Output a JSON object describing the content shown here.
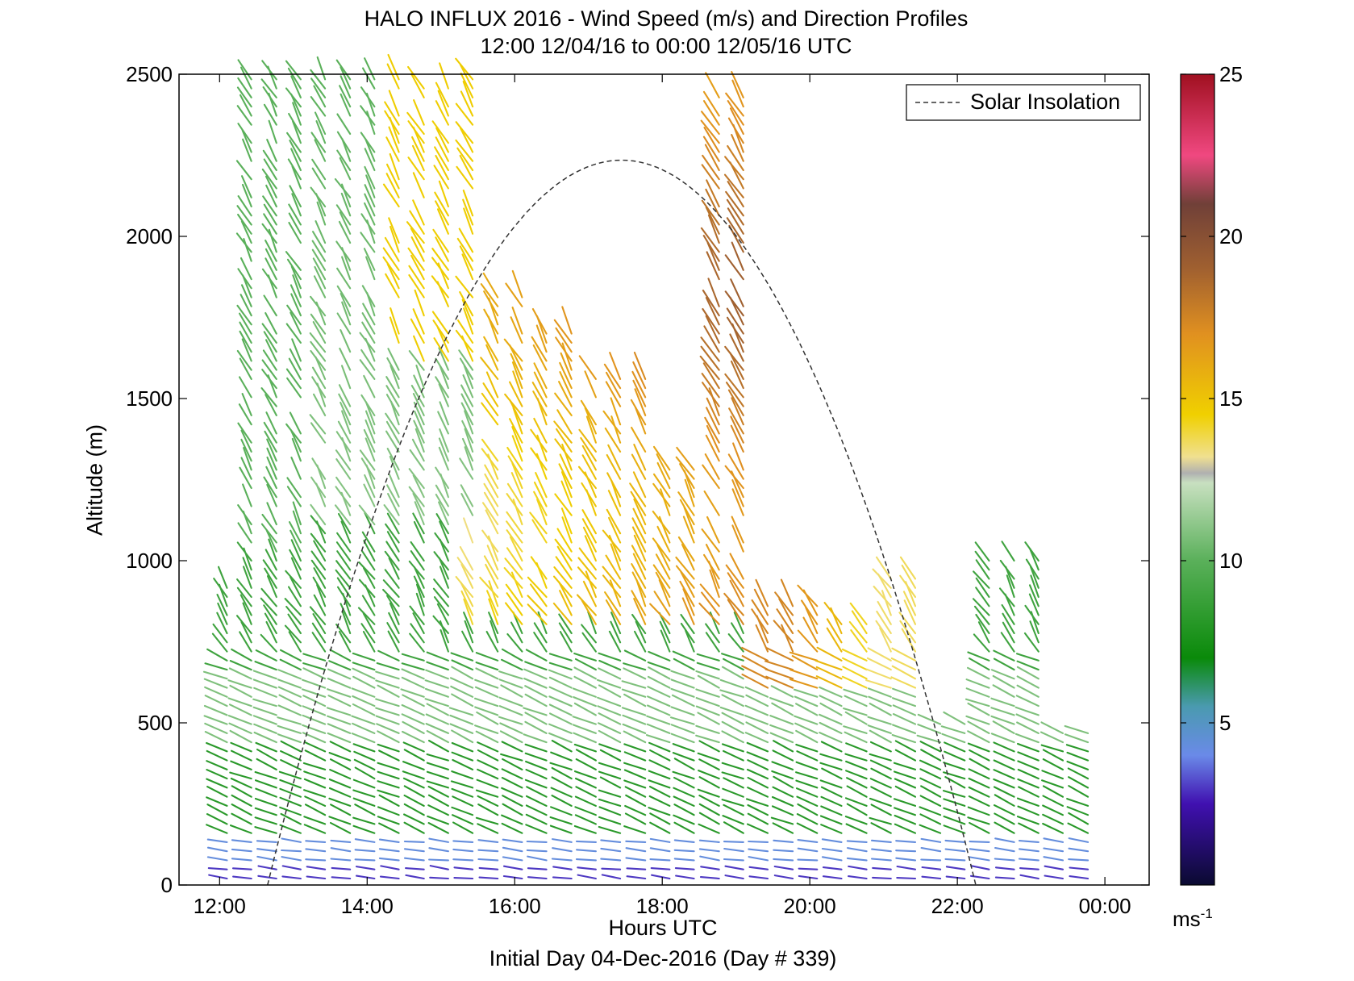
{
  "chart_data": {
    "type": "scatter",
    "title": "HALO INFLUX 2016 - Wind Speed (m/s) and Direction Profiles",
    "subtitle": "12:00 12/04/16 to 00:00 12/05/16  UTC",
    "xlabel": "Hours UTC",
    "xlabel_sub": "Initial Day 04-Dec-2016 (Day # 339)",
    "ylabel": "Altitude (m)",
    "xlim": [
      11.45,
      24.6
    ],
    "ylim": [
      0,
      2500
    ],
    "x_ticks": [
      {
        "value": 12,
        "label": "12:00"
      },
      {
        "value": 14,
        "label": "14:00"
      },
      {
        "value": 16,
        "label": "16:00"
      },
      {
        "value": 18,
        "label": "18:00"
      },
      {
        "value": 20,
        "label": "20:00"
      },
      {
        "value": 22,
        "label": "22:00"
      },
      {
        "value": 24,
        "label": "00:00"
      }
    ],
    "y_ticks": [
      {
        "value": 0,
        "label": "0"
      },
      {
        "value": 500,
        "label": "500"
      },
      {
        "value": 1000,
        "label": "1000"
      },
      {
        "value": 1500,
        "label": "1500"
      },
      {
        "value": 2000,
        "label": "2000"
      },
      {
        "value": 2500,
        "label": "2500"
      }
    ],
    "legend": {
      "label": "Solar Insolation",
      "placement": "top-right"
    },
    "colorbar": {
      "range": [
        0,
        25
      ],
      "ticks": [
        {
          "value": 5,
          "label": "5"
        },
        {
          "value": 10,
          "label": "10"
        },
        {
          "value": 15,
          "label": "15"
        },
        {
          "value": 20,
          "label": "20"
        },
        {
          "value": 25,
          "label": "25"
        }
      ],
      "unit_base": "ms",
      "unit_exp": "-1",
      "stops": [
        {
          "value": 0,
          "color": "#0a0a30"
        },
        {
          "value": 2.5,
          "color": "#4010b0"
        },
        {
          "value": 4,
          "color": "#6a8ae8"
        },
        {
          "value": 5.5,
          "color": "#4a9ab0"
        },
        {
          "value": 7,
          "color": "#0a8a0a"
        },
        {
          "value": 10,
          "color": "#5ab05a"
        },
        {
          "value": 12.4,
          "color": "#c8e0c0"
        },
        {
          "value": 12.7,
          "color": "#b0b0b0"
        },
        {
          "value": 13.2,
          "color": "#f0e090"
        },
        {
          "value": 14.5,
          "color": "#f0d000"
        },
        {
          "value": 17,
          "color": "#e09020"
        },
        {
          "value": 19,
          "color": "#a06030"
        },
        {
          "value": 21,
          "color": "#704038"
        },
        {
          "value": 22.5,
          "color": "#f04880"
        },
        {
          "value": 25,
          "color": "#a01020"
        }
      ]
    },
    "solar_insolation": {
      "shape": "parabola",
      "x_start": 12.65,
      "x_peak": 17.45,
      "x_end": 22.25,
      "y_peak": 2235,
      "style": "dashed"
    },
    "wind_profiles": {
      "times": [
        12.1,
        12.43,
        12.77,
        13.1,
        13.43,
        13.77,
        14.1,
        14.43,
        14.77,
        15.1,
        15.43,
        15.77,
        16.1,
        16.43,
        16.77,
        17.1,
        17.43,
        17.77,
        18.1,
        18.43,
        18.77,
        19.1,
        19.43,
        19.77,
        20.1,
        20.43,
        20.77,
        21.1,
        21.43,
        21.77,
        22.1,
        22.43,
        22.77,
        23.1,
        23.43,
        23.77
      ],
      "altitude_step_m": 28,
      "note": "Barbs: length encodes wind speed, colour encodes speed on the colorbar scale"
    }
  }
}
